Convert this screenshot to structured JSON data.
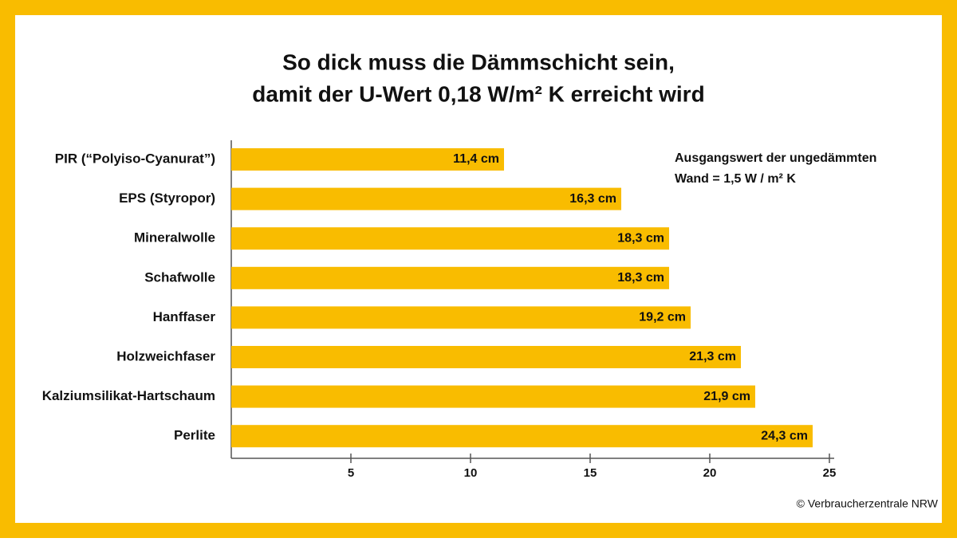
{
  "chart_data": {
    "type": "bar",
    "orientation": "horizontal",
    "title": [
      "So dick muss die Dämmschicht sein,",
      "damit der U-Wert 0,18 W/m² K erreicht wird"
    ],
    "annotation": [
      "Ausgangswert der ungedämmten",
      "Wand = 1,5 W / m² K"
    ],
    "source": "© Verbraucherzentrale NRW",
    "categories": [
      "PIR (“Polyiso-Cyanurat”)",
      "EPS (Styropor)",
      "Mineralwolle",
      "Schafwolle",
      "Hanffaser",
      "Holzweichfaser",
      "Kalziumsilikat-Hartschaum",
      "Perlite"
    ],
    "values": [
      11.4,
      16.3,
      18.3,
      18.3,
      19.2,
      21.3,
      21.9,
      24.3
    ],
    "value_labels": [
      "11,4 cm",
      "16,3 cm",
      "18,3 cm",
      "18,3 cm",
      "19,2 cm",
      "21,3 cm",
      "21,9 cm",
      "24,3 cm"
    ],
    "color": "#f9bc00",
    "xlim": [
      0,
      25
    ],
    "xticks": [
      5,
      10,
      15,
      20,
      25
    ]
  }
}
